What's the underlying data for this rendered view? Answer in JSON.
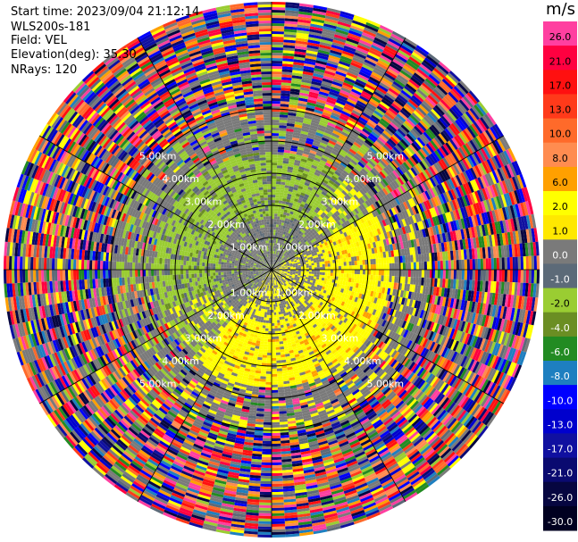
{
  "header": {
    "start_time": "Start time: 2023/09/04 21:12:14",
    "instrument": "WLS200s-181",
    "field": "Field: VEL",
    "elevation": "Elevation(deg): 35.30",
    "nrays": "NRays: 120"
  },
  "colorbar": {
    "unit": "m/s",
    "entries": [
      {
        "label": "26.0",
        "color": "#ff3fa0"
      },
      {
        "label": "21.0",
        "color": "#ff0040"
      },
      {
        "label": "17.0",
        "color": "#ff1010"
      },
      {
        "label": "13.0",
        "color": "#ff3a1a"
      },
      {
        "label": "10.0",
        "color": "#ff6a2a"
      },
      {
        "label": "8.0",
        "color": "#ff8c50"
      },
      {
        "label": "6.0",
        "color": "#ffa000"
      },
      {
        "label": "2.0",
        "color": "#ffff00"
      },
      {
        "label": "1.0",
        "color": "#ffe800"
      },
      {
        "label": "0.0",
        "color": "#7a7a7a"
      },
      {
        "label": "-1.0",
        "color": "#5c6a78"
      },
      {
        "label": "-2.0",
        "color": "#9acd32"
      },
      {
        "label": "-4.0",
        "color": "#6b8e23"
      },
      {
        "label": "-6.0",
        "color": "#228b22"
      },
      {
        "label": "-8.0",
        "color": "#1e7fc0"
      },
      {
        "label": "-10.0",
        "color": "#0000ff"
      },
      {
        "label": "-13.0",
        "color": "#0000cd"
      },
      {
        "label": "-17.0",
        "color": "#1010a0"
      },
      {
        "label": "-21.0",
        "color": "#0a0a70"
      },
      {
        "label": "-26.0",
        "color": "#060640"
      },
      {
        "label": "-30.0",
        "color": "#000020"
      }
    ]
  },
  "chart_data": {
    "type": "heatmap",
    "projection": "polar-ppi",
    "field": "VEL",
    "units": "m/s",
    "elevation_deg": 35.3,
    "nrays": 120,
    "range_ring_labels": [
      "1.00km",
      "2.00km",
      "3.00km",
      "4.00km",
      "5.00km"
    ],
    "range_rings_km": [
      1,
      2,
      3,
      4,
      5
    ],
    "max_range_km": 5.0,
    "color_scale_ticks": [
      26.0,
      21.0,
      17.0,
      13.0,
      10.0,
      8.0,
      6.0,
      2.0,
      1.0,
      0.0,
      -1.0,
      -2.0,
      -4.0,
      -6.0,
      -8.0,
      -10.0,
      -13.0,
      -17.0,
      -21.0,
      -26.0,
      -30.0
    ],
    "regions": [
      {
        "range_km": [
          0,
          1.0
        ],
        "description": "mostly near-zero velocities",
        "dominant_values": [
          0.0,
          2.0,
          -2.0
        ]
      },
      {
        "range_km": [
          1.0,
          2.2
        ],
        "description": "positive (yellow) south-east and negative (green) north-west",
        "dominant_values": [
          2.0,
          0.0,
          -2.0,
          -4.0
        ]
      },
      {
        "range_km": [
          2.2,
          3.0
        ],
        "description": "mixed noisy values",
        "dominant_values": [
          0.0,
          -2.0,
          2.0
        ]
      },
      {
        "range_km": [
          3.0,
          5.0
        ],
        "description": "noise at far range, full colour spectrum",
        "dominant_values": [
          26.0,
          13.0,
          -8.0,
          -17.0,
          -26.0
        ]
      }
    ]
  }
}
